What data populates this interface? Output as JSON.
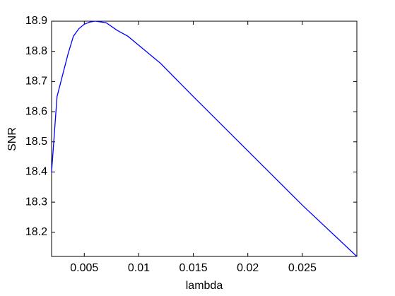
{
  "chart_data": {
    "type": "line",
    "xlabel": "lambda",
    "ylabel": "SNR",
    "x": [
      0.002,
      0.0025,
      0.003,
      0.0035,
      0.004,
      0.0045,
      0.005,
      0.0055,
      0.006,
      0.007,
      0.008,
      0.009,
      0.01,
      0.012,
      0.015,
      0.02,
      0.025,
      0.03
    ],
    "series": [
      {
        "name": "SNR",
        "color": "#0000ff",
        "values": [
          18.4,
          18.65,
          18.72,
          18.79,
          18.85,
          18.875,
          18.89,
          18.897,
          18.9,
          18.895,
          18.87,
          18.85,
          18.82,
          18.76,
          18.65,
          18.47,
          18.29,
          18.12
        ]
      }
    ],
    "xlim": [
      0.002,
      0.03
    ],
    "xticks": [
      0.005,
      0.01,
      0.015,
      0.02,
      0.025
    ],
    "ylim": [
      18.12,
      18.9
    ],
    "yticks": [
      18.2,
      18.3,
      18.4,
      18.5,
      18.6,
      18.7,
      18.8,
      18.9
    ],
    "grid": false
  }
}
